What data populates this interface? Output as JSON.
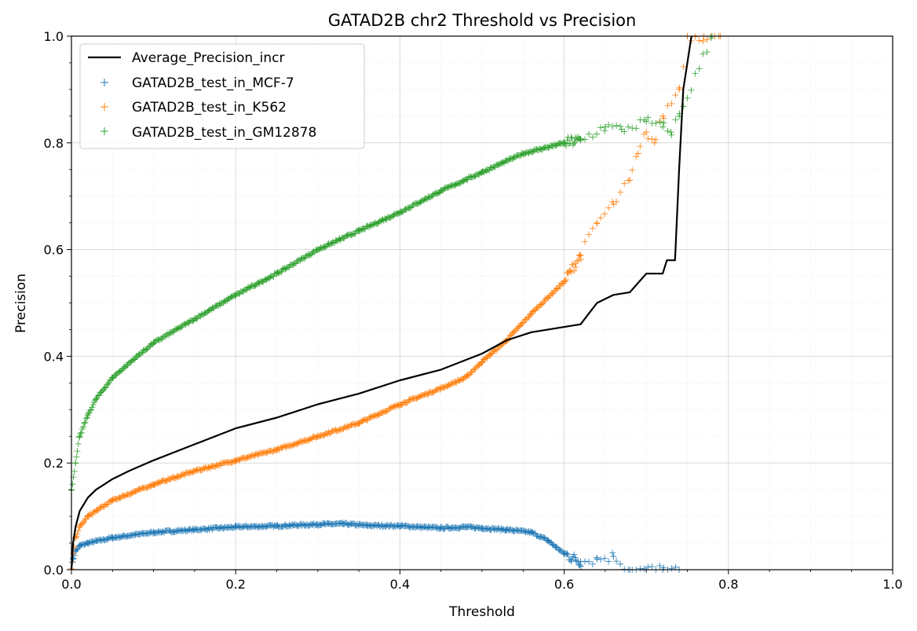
{
  "chart_data": {
    "type": "scatter",
    "title": "GATAD2B chr2 Threshold vs Precision",
    "xlabel": "Threshold",
    "ylabel": "Precision",
    "xlim": [
      0.0,
      1.0
    ],
    "ylim": [
      0.0,
      1.0
    ],
    "xticks": [
      "0.0",
      "0.2",
      "0.4",
      "0.6",
      "0.8",
      "1.0"
    ],
    "yticks": [
      "0.0",
      "0.2",
      "0.4",
      "0.6",
      "0.8",
      "1.0"
    ],
    "grid": true,
    "legend_position": "top-left",
    "series": [
      {
        "name": "Average_Precision_incr",
        "kind": "line",
        "color": "#000000",
        "points": [
          [
            0.0,
            0.0
          ],
          [
            0.002,
            0.05
          ],
          [
            0.005,
            0.08
          ],
          [
            0.01,
            0.11
          ],
          [
            0.02,
            0.135
          ],
          [
            0.03,
            0.15
          ],
          [
            0.05,
            0.17
          ],
          [
            0.07,
            0.185
          ],
          [
            0.1,
            0.205
          ],
          [
            0.15,
            0.235
          ],
          [
            0.2,
            0.265
          ],
          [
            0.25,
            0.285
          ],
          [
            0.3,
            0.31
          ],
          [
            0.35,
            0.33
          ],
          [
            0.4,
            0.355
          ],
          [
            0.45,
            0.375
          ],
          [
            0.5,
            0.405
          ],
          [
            0.53,
            0.43
          ],
          [
            0.56,
            0.445
          ],
          [
            0.58,
            0.45
          ],
          [
            0.6,
            0.455
          ],
          [
            0.62,
            0.46
          ],
          [
            0.64,
            0.5
          ],
          [
            0.66,
            0.515
          ],
          [
            0.68,
            0.52
          ],
          [
            0.7,
            0.555
          ],
          [
            0.72,
            0.555
          ],
          [
            0.725,
            0.58
          ],
          [
            0.735,
            0.58
          ],
          [
            0.74,
            0.75
          ],
          [
            0.745,
            0.9
          ],
          [
            0.75,
            0.95
          ],
          [
            0.755,
            1.0
          ]
        ]
      },
      {
        "name": "GATAD2B_test_in_MCF-7",
        "kind": "scatter",
        "color": "#1f77b4",
        "points": [
          [
            0.0,
            0.0
          ],
          [
            0.002,
            0.02
          ],
          [
            0.005,
            0.035
          ],
          [
            0.01,
            0.045
          ],
          [
            0.02,
            0.05
          ],
          [
            0.05,
            0.06
          ],
          [
            0.1,
            0.07
          ],
          [
            0.15,
            0.075
          ],
          [
            0.2,
            0.08
          ],
          [
            0.25,
            0.082
          ],
          [
            0.3,
            0.085
          ],
          [
            0.33,
            0.086
          ],
          [
            0.36,
            0.083
          ],
          [
            0.4,
            0.082
          ],
          [
            0.45,
            0.078
          ],
          [
            0.48,
            0.08
          ],
          [
            0.5,
            0.078
          ],
          [
            0.53,
            0.075
          ],
          [
            0.56,
            0.07
          ],
          [
            0.58,
            0.055
          ],
          [
            0.6,
            0.03
          ],
          [
            0.62,
            0.015
          ],
          [
            0.64,
            0.02
          ],
          [
            0.66,
            0.025
          ],
          [
            0.68,
            0.0
          ],
          [
            0.7,
            0.0
          ],
          [
            0.72,
            0.0
          ],
          [
            0.74,
            0.0
          ]
        ]
      },
      {
        "name": "GATAD2B_test_in_K562",
        "kind": "scatter",
        "color": "#ff7f0e",
        "points": [
          [
            0.0,
            0.0
          ],
          [
            0.005,
            0.06
          ],
          [
            0.01,
            0.08
          ],
          [
            0.02,
            0.1
          ],
          [
            0.05,
            0.13
          ],
          [
            0.1,
            0.16
          ],
          [
            0.15,
            0.185
          ],
          [
            0.2,
            0.205
          ],
          [
            0.25,
            0.225
          ],
          [
            0.3,
            0.25
          ],
          [
            0.35,
            0.275
          ],
          [
            0.4,
            0.31
          ],
          [
            0.45,
            0.34
          ],
          [
            0.48,
            0.36
          ],
          [
            0.5,
            0.39
          ],
          [
            0.53,
            0.43
          ],
          [
            0.56,
            0.48
          ],
          [
            0.6,
            0.54
          ],
          [
            0.62,
            0.59
          ],
          [
            0.64,
            0.65
          ],
          [
            0.66,
            0.685
          ],
          [
            0.68,
            0.73
          ],
          [
            0.69,
            0.78
          ],
          [
            0.7,
            0.82
          ],
          [
            0.71,
            0.8
          ],
          [
            0.72,
            0.85
          ],
          [
            0.74,
            0.9
          ],
          [
            0.75,
            1.0
          ],
          [
            0.77,
            1.0
          ],
          [
            0.79,
            1.0
          ]
        ]
      },
      {
        "name": "GATAD2B_test_in_GM12878",
        "kind": "scatter",
        "color": "#2ca02c",
        "points": [
          [
            0.0,
            0.15
          ],
          [
            0.005,
            0.2
          ],
          [
            0.01,
            0.25
          ],
          [
            0.02,
            0.29
          ],
          [
            0.03,
            0.32
          ],
          [
            0.05,
            0.36
          ],
          [
            0.08,
            0.4
          ],
          [
            0.1,
            0.425
          ],
          [
            0.15,
            0.47
          ],
          [
            0.2,
            0.515
          ],
          [
            0.25,
            0.555
          ],
          [
            0.3,
            0.6
          ],
          [
            0.35,
            0.635
          ],
          [
            0.4,
            0.67
          ],
          [
            0.45,
            0.71
          ],
          [
            0.5,
            0.745
          ],
          [
            0.55,
            0.78
          ],
          [
            0.6,
            0.8
          ],
          [
            0.62,
            0.805
          ],
          [
            0.65,
            0.83
          ],
          [
            0.67,
            0.825
          ],
          [
            0.7,
            0.84
          ],
          [
            0.72,
            0.83
          ],
          [
            0.73,
            0.82
          ],
          [
            0.74,
            0.85
          ],
          [
            0.78,
            1.0
          ]
        ]
      }
    ]
  }
}
